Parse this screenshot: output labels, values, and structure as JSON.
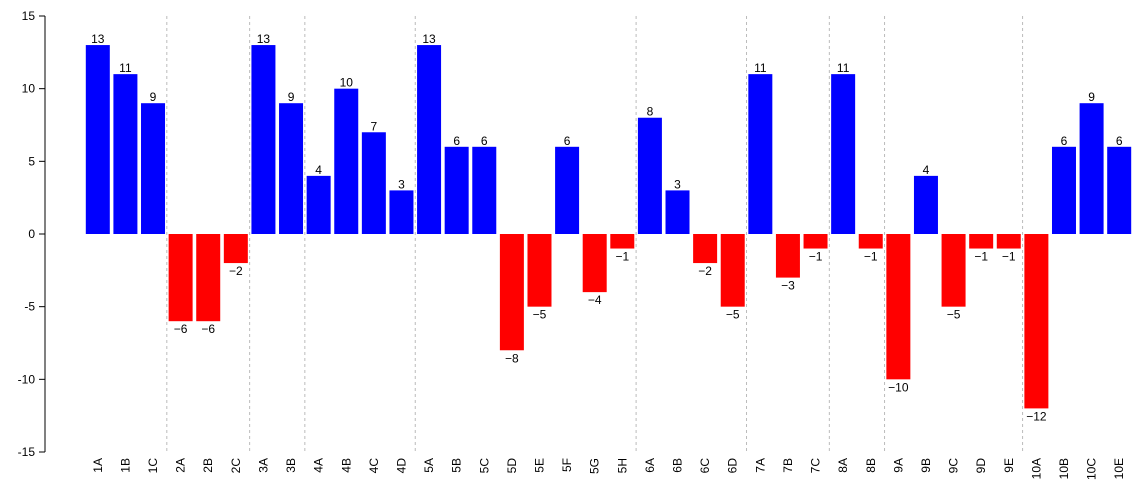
{
  "chart_data": {
    "type": "bar",
    "categories": [
      "1A",
      "1B",
      "1C",
      "2A",
      "2B",
      "2C",
      "3A",
      "3B",
      "4A",
      "4B",
      "4C",
      "4D",
      "5A",
      "5B",
      "5C",
      "5D",
      "5E",
      "5F",
      "5G",
      "5H",
      "6A",
      "6B",
      "6C",
      "6D",
      "7A",
      "7B",
      "7C",
      "8A",
      "8B",
      "9A",
      "9B",
      "9C",
      "9D",
      "9E",
      "10A",
      "10B",
      "10C",
      "10E"
    ],
    "values": [
      13,
      11,
      9,
      -6,
      -6,
      -2,
      13,
      9,
      4,
      10,
      7,
      3,
      13,
      6,
      6,
      -8,
      -5,
      6,
      -4,
      -1,
      8,
      3,
      -2,
      -5,
      11,
      -3,
      -1,
      11,
      -1,
      -10,
      4,
      -5,
      -1,
      -1,
      -12,
      6,
      9,
      6
    ],
    "value_labels": [
      "13",
      "11",
      "9",
      "−6",
      "−6",
      "−2",
      "13",
      "9",
      "4",
      "10",
      "7",
      "3",
      "13",
      "6",
      "6",
      "−8",
      "−5",
      "6",
      "−4",
      "−1",
      "8",
      "3",
      "−2",
      "−5",
      "11",
      "−3",
      "−1",
      "11",
      "−1",
      "−10",
      "4",
      "−5",
      "−1",
      "−1",
      "−12",
      "6",
      "9",
      "6"
    ],
    "positive_color": "#0000ff",
    "negative_color": "#ff0000",
    "ylim": [
      -15,
      15
    ],
    "yticks": [
      -15,
      -10,
      -5,
      0,
      5,
      10,
      15
    ]
  }
}
